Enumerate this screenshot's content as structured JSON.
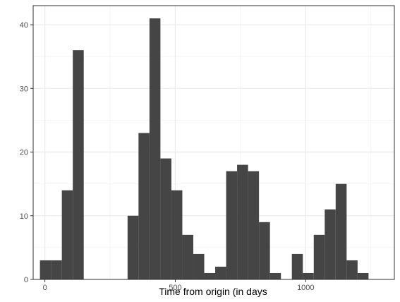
{
  "chart_data": {
    "type": "bar",
    "title": "",
    "xlabel": "Time from origin (in days",
    "ylabel": "",
    "xlim": [
      -45,
      1340
    ],
    "ylim": [
      0,
      43
    ],
    "grid": true,
    "bar_color": "#454545",
    "x_ticks": [
      0,
      500,
      1000
    ],
    "x_tick_labels": [
      "0",
      "500",
      "1000"
    ],
    "y_ticks": [
      0,
      10,
      20,
      30,
      40
    ],
    "y_tick_labels": [
      "0",
      "10",
      "20",
      "30",
      "40"
    ],
    "bins": [
      {
        "x0": -19,
        "x1": 23,
        "count": 3
      },
      {
        "x0": 23,
        "x1": 65,
        "count": 3
      },
      {
        "x0": 65,
        "x1": 107,
        "count": 14
      },
      {
        "x0": 107,
        "x1": 149,
        "count": 36
      },
      {
        "x0": 149,
        "x1": 191,
        "count": 0
      },
      {
        "x0": 191,
        "x1": 233,
        "count": 0
      },
      {
        "x0": 233,
        "x1": 275,
        "count": 0
      },
      {
        "x0": 275,
        "x1": 317,
        "count": 0
      },
      {
        "x0": 317,
        "x1": 359,
        "count": 10
      },
      {
        "x0": 359,
        "x1": 401,
        "count": 23
      },
      {
        "x0": 401,
        "x1": 443,
        "count": 41
      },
      {
        "x0": 443,
        "x1": 485,
        "count": 19
      },
      {
        "x0": 485,
        "x1": 527,
        "count": 14
      },
      {
        "x0": 527,
        "x1": 569,
        "count": 7
      },
      {
        "x0": 569,
        "x1": 611,
        "count": 4
      },
      {
        "x0": 611,
        "x1": 653,
        "count": 1
      },
      {
        "x0": 653,
        "x1": 695,
        "count": 2
      },
      {
        "x0": 695,
        "x1": 737,
        "count": 17
      },
      {
        "x0": 737,
        "x1": 779,
        "count": 18
      },
      {
        "x0": 779,
        "x1": 821,
        "count": 17
      },
      {
        "x0": 821,
        "x1": 863,
        "count": 9
      },
      {
        "x0": 863,
        "x1": 905,
        "count": 1
      },
      {
        "x0": 905,
        "x1": 947,
        "count": 0
      },
      {
        "x0": 947,
        "x1": 989,
        "count": 4
      },
      {
        "x0": 989,
        "x1": 1031,
        "count": 1
      },
      {
        "x0": 1031,
        "x1": 1073,
        "count": 7
      },
      {
        "x0": 1073,
        "x1": 1115,
        "count": 11
      },
      {
        "x0": 1115,
        "x1": 1157,
        "count": 15
      },
      {
        "x0": 1157,
        "x1": 1199,
        "count": 3
      },
      {
        "x0": 1199,
        "x1": 1241,
        "count": 1
      }
    ]
  }
}
